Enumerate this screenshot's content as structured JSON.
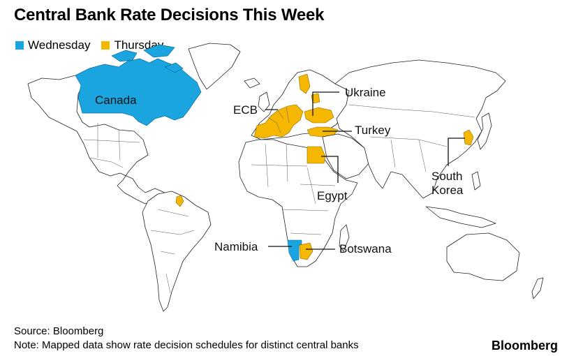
{
  "title": "Central Bank Rate Decisions This Week",
  "legend": [
    {
      "label": "Wednesday",
      "color": "#1ba5e0"
    },
    {
      "label": "Thursday",
      "color": "#f5b700"
    }
  ],
  "colors": {
    "wednesday": "#1ba5e0",
    "thursday": "#f5b700",
    "land": "#ffffff",
    "outline": "#222222"
  },
  "regions": {
    "wednesday": [
      "Canada",
      "Namibia"
    ],
    "thursday": [
      "ECB",
      "Ukraine",
      "Turkey",
      "Egypt",
      "Botswana",
      "South Korea",
      "Guyana"
    ]
  },
  "labels": {
    "canada": "Canada",
    "ecb": "ECB",
    "ukraine": "Ukraine",
    "turkey": "Turkey",
    "egypt": "Egypt",
    "south": "South",
    "korea": "Korea",
    "namibia": "Namibia",
    "botswana": "Botswana"
  },
  "footer": {
    "source": "Source: Bloomberg",
    "note": "Note: Mapped data show rate decision schedules for distinct central banks",
    "brand": "Bloomberg"
  }
}
